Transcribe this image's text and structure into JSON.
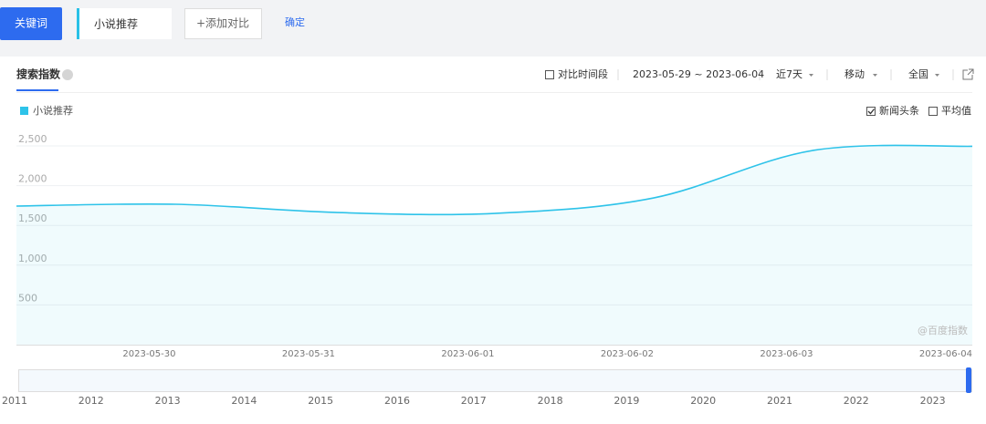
{
  "search_bar": {
    "keyword_button": "关键词",
    "input": "小说推荐",
    "add_compare": "+添加对比",
    "confirm": "确定"
  },
  "toolbar": {
    "tab": "搜索指数",
    "compare_period": "对比时间段",
    "date_range": "2023-05-29 ~ 2023-06-04",
    "period": "近7天",
    "device": "移动",
    "region": "全国"
  },
  "options": {
    "news": "新闻头条",
    "news_checked": true,
    "average": "平均值",
    "average_checked": false
  },
  "watermark": "@百度指数",
  "chart_data": {
    "type": "line",
    "x": [
      null,
      "2023-05-30",
      "2023-05-31",
      "2023-06-01",
      "2023-06-02",
      "2023-06-03",
      "2023-06-04"
    ],
    "series": [
      {
        "name": "小说推荐",
        "color": "#2ec3e9",
        "values": [
          1743,
          1766,
          1663,
          1651,
          1846,
          2443,
          2495
        ]
      }
    ],
    "ylim": [
      0,
      2500
    ],
    "yticks": [
      {
        "value": 2500,
        "label": "2,500"
      },
      {
        "value": 2000,
        "label": "2,000"
      },
      {
        "value": 1500,
        "label": "1,500"
      },
      {
        "value": 1000,
        "label": "1,000"
      },
      500
    ],
    "grid": true
  },
  "navigator": {
    "years": [
      2011,
      2012,
      2013,
      2014,
      2015,
      2016,
      2017,
      2018,
      2019,
      2020,
      2021,
      2022,
      2023
    ]
  }
}
